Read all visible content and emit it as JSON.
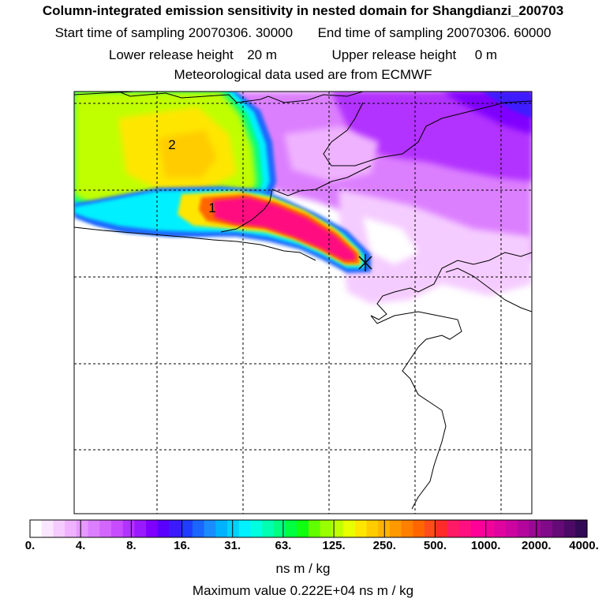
{
  "header": {
    "title": "Column-integrated emission sensitivity in nested domain for Shangdianzi_200703",
    "start_label": "Start time of sampling",
    "start_value": "20070306. 30000",
    "end_label": "End time of sampling",
    "end_value": "20070306. 60000",
    "lower_label": "Lower release height",
    "lower_value": "20 m",
    "upper_label": "Upper release height",
    "upper_value": "0 m",
    "met_text": "Meteorological data used are from ECMWF"
  },
  "map": {
    "labels": [
      {
        "text": "2",
        "name": "contour-label-2"
      },
      {
        "text": "1",
        "name": "contour-label-1"
      }
    ],
    "receptor_marker": "x-icon"
  },
  "colorbar": {
    "tick_labels": [
      "0.",
      "4.",
      "8.",
      "16.",
      "31.",
      "63.",
      "125.",
      "250.",
      "500.",
      "1000.",
      "2000.",
      "4000."
    ],
    "colors": [
      "#ffffff",
      "#fbe6ff",
      "#f5ccff",
      "#efb2ff",
      "#e699ff",
      "#dc7fff",
      "#d266ff",
      "#c74cff",
      "#b233ff",
      "#9a1aff",
      "#7f00ff",
      "#5a00ff",
      "#3c1aff",
      "#1f3cff",
      "#1a66ff",
      "#1a8cff",
      "#00b2ff",
      "#00d2ff",
      "#00f0ff",
      "#00ffe0",
      "#00ffb0",
      "#00ff80",
      "#00ff40",
      "#10ff10",
      "#60ff00",
      "#99ff00",
      "#c0ff00",
      "#e8ff00",
      "#ffe600",
      "#ffcc00",
      "#ffb200",
      "#ff9900",
      "#ff7f00",
      "#ff6600",
      "#ff4c1a",
      "#ff2a2a",
      "#ff1a66",
      "#ff0f80",
      "#ff0099",
      "#f0049a",
      "#e0049e",
      "#cc05a0",
      "#b4069c",
      "#9a0894",
      "#800a88",
      "#660a78",
      "#4c0a66",
      "#330a55"
    ],
    "units": "ns m / kg"
  },
  "footer": {
    "max_text": "Maximum value  0.222E+04 ns m / kg"
  }
}
